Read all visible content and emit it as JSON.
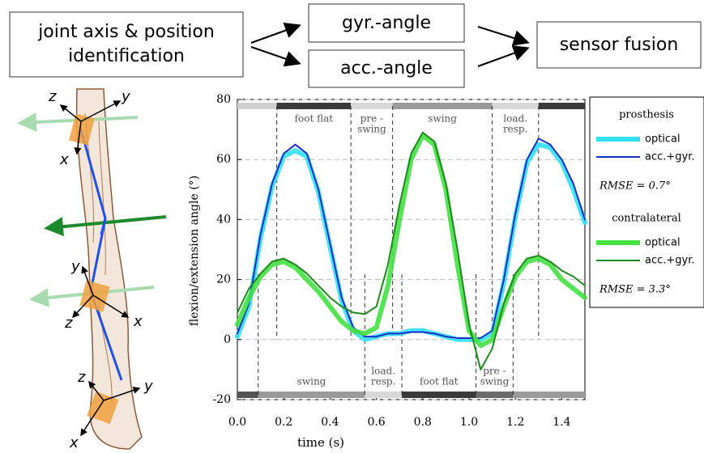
{
  "flowchart": {
    "nodes": [
      {
        "lines": [
          "joint axis & position",
          "identification"
        ]
      },
      {
        "lines": [
          "gyr.-angle"
        ]
      },
      {
        "lines": [
          "acc.-angle"
        ]
      },
      {
        "lines": [
          "sensor fusion"
        ]
      }
    ]
  },
  "illustration": {
    "labels": [
      "z",
      "y",
      "x",
      "y",
      "z",
      "x",
      "z",
      "y",
      "x"
    ]
  },
  "chart_data": {
    "type": "line",
    "xlabel": "time (s)",
    "ylabel": "flexion/extension angle (°)",
    "x": [
      0,
      0.05,
      0.1,
      0.15,
      0.2,
      0.25,
      0.3,
      0.35,
      0.4,
      0.45,
      0.5,
      0.55,
      0.6,
      0.65,
      0.7,
      0.75,
      0.8,
      0.85,
      0.9,
      0.95,
      1,
      1.05,
      1.1,
      1.15,
      1.2,
      1.25,
      1.3,
      1.35,
      1.4,
      1.45,
      1.5
    ],
    "series": [
      {
        "name": "optical",
        "group": 0,
        "color": "#33e0f0",
        "width": 6,
        "values": [
          1,
          11,
          34,
          51,
          61,
          63,
          61,
          49,
          31,
          13,
          3,
          0,
          1,
          2,
          2,
          3,
          3,
          2,
          1,
          0,
          0,
          0,
          2,
          19,
          41,
          59,
          65,
          64,
          59,
          50,
          39
        ]
      },
      {
        "name": "acc.+gyr.",
        "group": 0,
        "color": "#1a2fc8",
        "width": 2,
        "values": [
          2,
          12,
          35,
          52,
          62,
          65,
          62,
          50,
          32,
          14,
          4,
          1,
          1,
          2,
          2,
          2.5,
          2.5,
          2,
          1,
          0.5,
          0.5,
          0.5,
          3,
          20,
          42,
          60,
          67,
          65,
          60,
          52,
          40
        ]
      },
      {
        "name": "optical",
        "group": 1,
        "color": "#44e044",
        "width": 6,
        "values": [
          5,
          14,
          21,
          25,
          26,
          24,
          20,
          16,
          11,
          6,
          3,
          2,
          4,
          18,
          40,
          60,
          68,
          65,
          50,
          25,
          3,
          -2,
          0,
          11,
          21,
          26,
          27,
          25,
          20,
          17,
          14
        ]
      },
      {
        "name": "acc.+gyr.",
        "group": 1,
        "color": "#1e8a1e",
        "width": 2,
        "values": [
          9,
          17,
          22,
          26,
          27,
          25,
          22,
          18,
          14,
          11,
          9,
          8.5,
          11,
          25,
          45,
          62,
          69,
          66,
          52,
          30,
          5,
          -10,
          -3,
          12,
          22,
          27,
          28,
          26,
          23,
          21,
          18
        ]
      }
    ],
    "legend_groups": [
      {
        "title": "prosthesis",
        "rmse": "RMSE = 0.7°"
      },
      {
        "title": "contralateral",
        "rmse": "RMSE = 3.3°"
      }
    ],
    "xlim": [
      0,
      1.5
    ],
    "ylim": [
      -20,
      80
    ],
    "xticks": [
      {
        "value": 0,
        "label": "0.0"
      },
      0.2,
      0.4,
      0.6,
      0.8,
      {
        "value": 1,
        "label": "1.0"
      },
      1.2,
      1.4
    ],
    "yticks": [
      -20,
      0,
      20,
      40,
      60,
      80
    ],
    "grid": true,
    "phases_top": [
      {
        "start": 0,
        "end": 0.17,
        "shade": "#cfcfcf"
      },
      {
        "start": 0.17,
        "end": 0.49,
        "shade": "#3a3a3a",
        "label": [
          "foot flat"
        ]
      },
      {
        "start": 0.49,
        "end": 0.67,
        "shade": "#d8d8d8",
        "label": [
          "pre -",
          "swing"
        ]
      },
      {
        "start": 0.67,
        "end": 1.1,
        "shade": "#9a9a9a",
        "label": [
          "swing"
        ]
      },
      {
        "start": 1.1,
        "end": 1.3,
        "shade": "#d8d8d8",
        "label": [
          "load.",
          "resp."
        ]
      },
      {
        "start": 1.3,
        "end": 1.5,
        "shade": "#3a3a3a"
      }
    ],
    "phases_bottom": [
      {
        "start": 0,
        "end": 0.09,
        "shade": "#555555"
      },
      {
        "start": 0.09,
        "end": 0.55,
        "shade": "#9a9a9a",
        "label": [
          "swing"
        ]
      },
      {
        "start": 0.55,
        "end": 0.71,
        "shade": "#d8d8d8",
        "label": [
          "load.",
          "resp."
        ]
      },
      {
        "start": 0.71,
        "end": 1.03,
        "shade": "#3a3a3a",
        "label": [
          "foot flat"
        ]
      },
      {
        "start": 1.03,
        "end": 1.19,
        "shade": "#6a6a6a",
        "label": [
          "pre -",
          "swing"
        ]
      },
      {
        "start": 1.19,
        "end": 1.5,
        "shade": "#9a9a9a"
      }
    ]
  }
}
